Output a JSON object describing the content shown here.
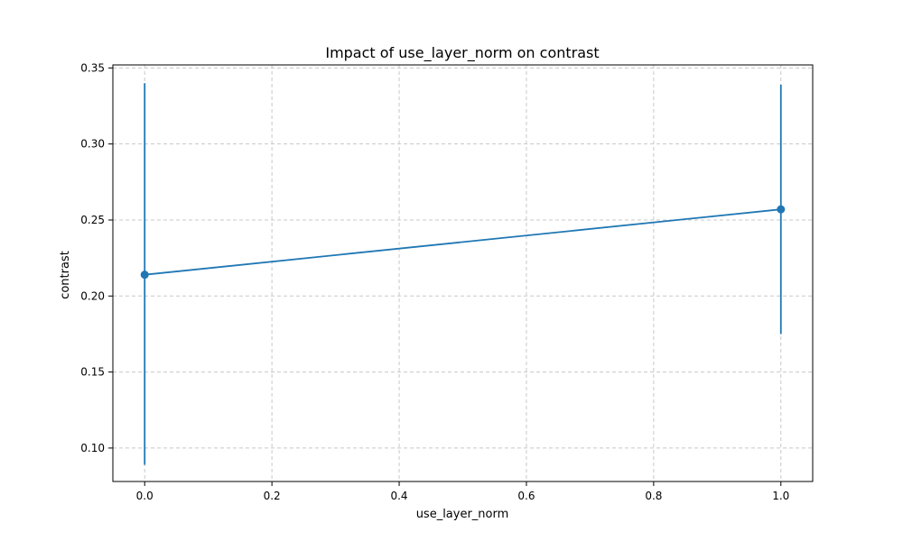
{
  "chart_data": {
    "type": "line",
    "title": "Impact of use_layer_norm on contrast",
    "xlabel": "use_layer_norm",
    "ylabel": "contrast",
    "xlim": [
      -0.05,
      1.05
    ],
    "ylim": [
      0.078,
      0.352
    ],
    "xticks": [
      0.0,
      0.2,
      0.4,
      0.6,
      0.8,
      1.0
    ],
    "xtick_labels": [
      "0.0",
      "0.2",
      "0.4",
      "0.6",
      "0.8",
      "1.0"
    ],
    "yticks": [
      0.1,
      0.15,
      0.2,
      0.25,
      0.3,
      0.35
    ],
    "ytick_labels": [
      "0.10",
      "0.15",
      "0.20",
      "0.25",
      "0.30",
      "0.35"
    ],
    "grid": true,
    "color": "#1f77b4",
    "series": [
      {
        "x": [
          0.0,
          1.0
        ],
        "y": [
          0.214,
          0.257
        ],
        "yerr_low": [
          0.089,
          0.175
        ],
        "yerr_high": [
          0.34,
          0.339
        ]
      }
    ]
  }
}
